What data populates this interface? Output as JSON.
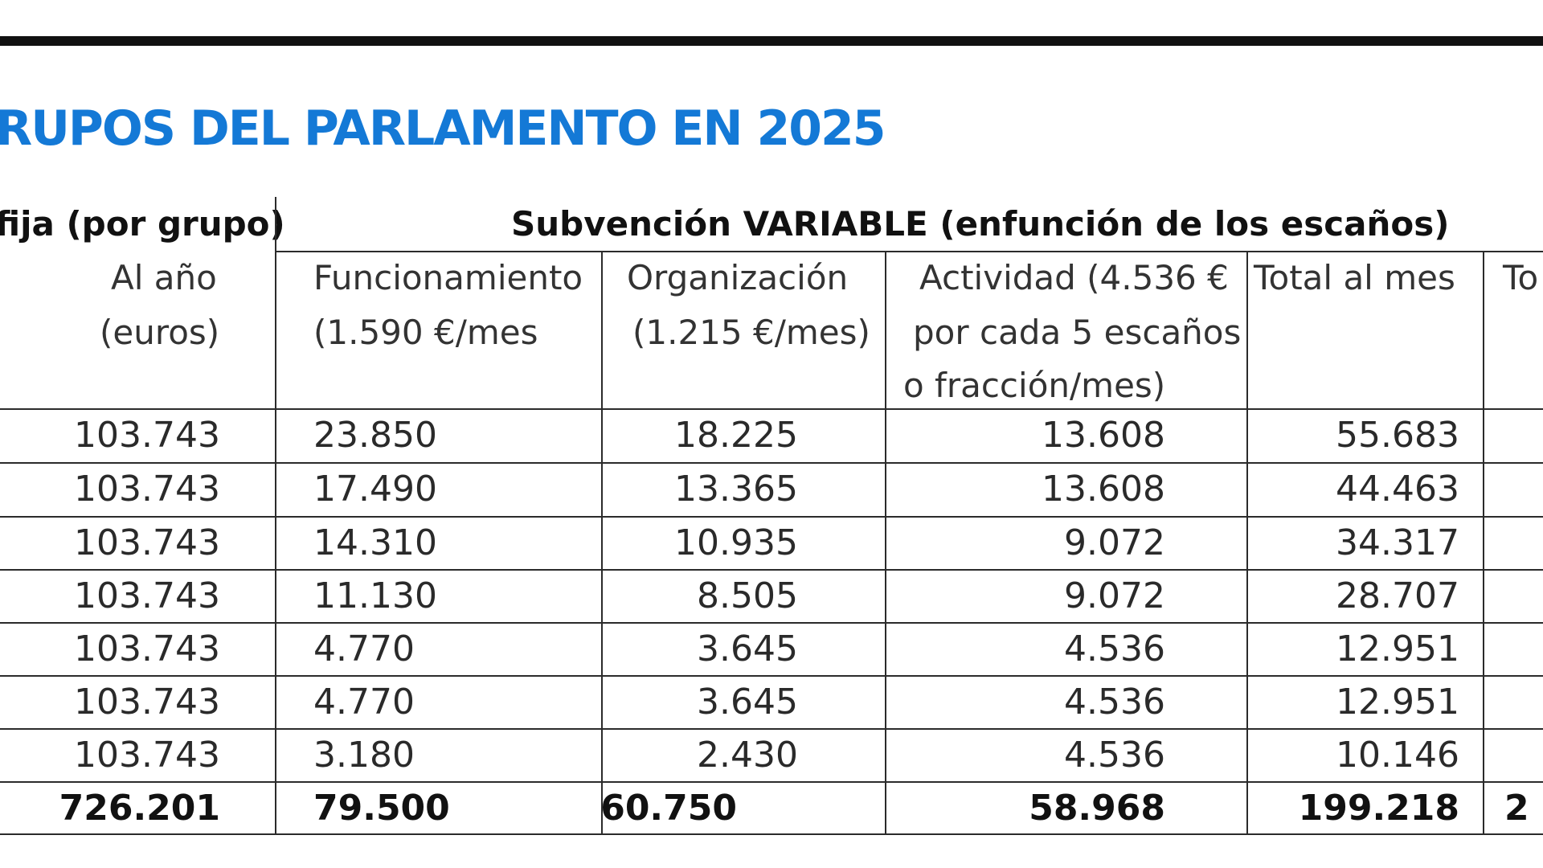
{
  "title": "RUPOS DEL PARLAMENTO EN 2025",
  "sections": {
    "fixed": "fija (por grupo)",
    "variable": "Subvención VARIABLE (enfunción de los escaños)"
  },
  "headers": {
    "al_ano_1": "Al año",
    "al_ano_2": "(euros)",
    "funcionamiento_1": "Funcionamiento",
    "funcionamiento_2": "(1.590 €/mes",
    "organizacion_1": "Organización",
    "organizacion_2": "(1.215 €/mes)",
    "actividad_1": "Actividad (4.536 €",
    "actividad_2": "por cada 5 escaños",
    "actividad_3": "o fracción/mes)",
    "total_mes": "Total al mes",
    "total_cut": "To"
  },
  "rows": [
    {
      "al_ano": "103.743",
      "funcionamiento": "23.850",
      "organizacion": "18.225",
      "actividad": "13.608",
      "total_mes": "55.683"
    },
    {
      "al_ano": "103.743",
      "funcionamiento": "17.490",
      "organizacion": "13.365",
      "actividad": "13.608",
      "total_mes": "44.463"
    },
    {
      "al_ano": "103.743",
      "funcionamiento": "14.310",
      "organizacion": "10.935",
      "actividad": "9.072",
      "total_mes": "34.317"
    },
    {
      "al_ano": "103.743",
      "funcionamiento": "11.130",
      "organizacion": "8.505",
      "actividad": "9.072",
      "total_mes": "28.707"
    },
    {
      "al_ano": "103.743",
      "funcionamiento": "4.770",
      "organizacion": "3.645",
      "actividad": "4.536",
      "total_mes": "12.951"
    },
    {
      "al_ano": "103.743",
      "funcionamiento": "4.770",
      "organizacion": "3.645",
      "actividad": "4.536",
      "total_mes": "12.951"
    },
    {
      "al_ano": "103.743",
      "funcionamiento": "3.180",
      "organizacion": "2.430",
      "actividad": "4.536",
      "total_mes": "10.146"
    }
  ],
  "totals": {
    "al_ano": "726.201",
    "funcionamiento": "79.500",
    "organizacion": "60.750",
    "actividad": "58.968",
    "total_mes": "199.218",
    "total_cut": "2"
  },
  "colors": {
    "title": "#1479d6",
    "rule": "#111111"
  }
}
